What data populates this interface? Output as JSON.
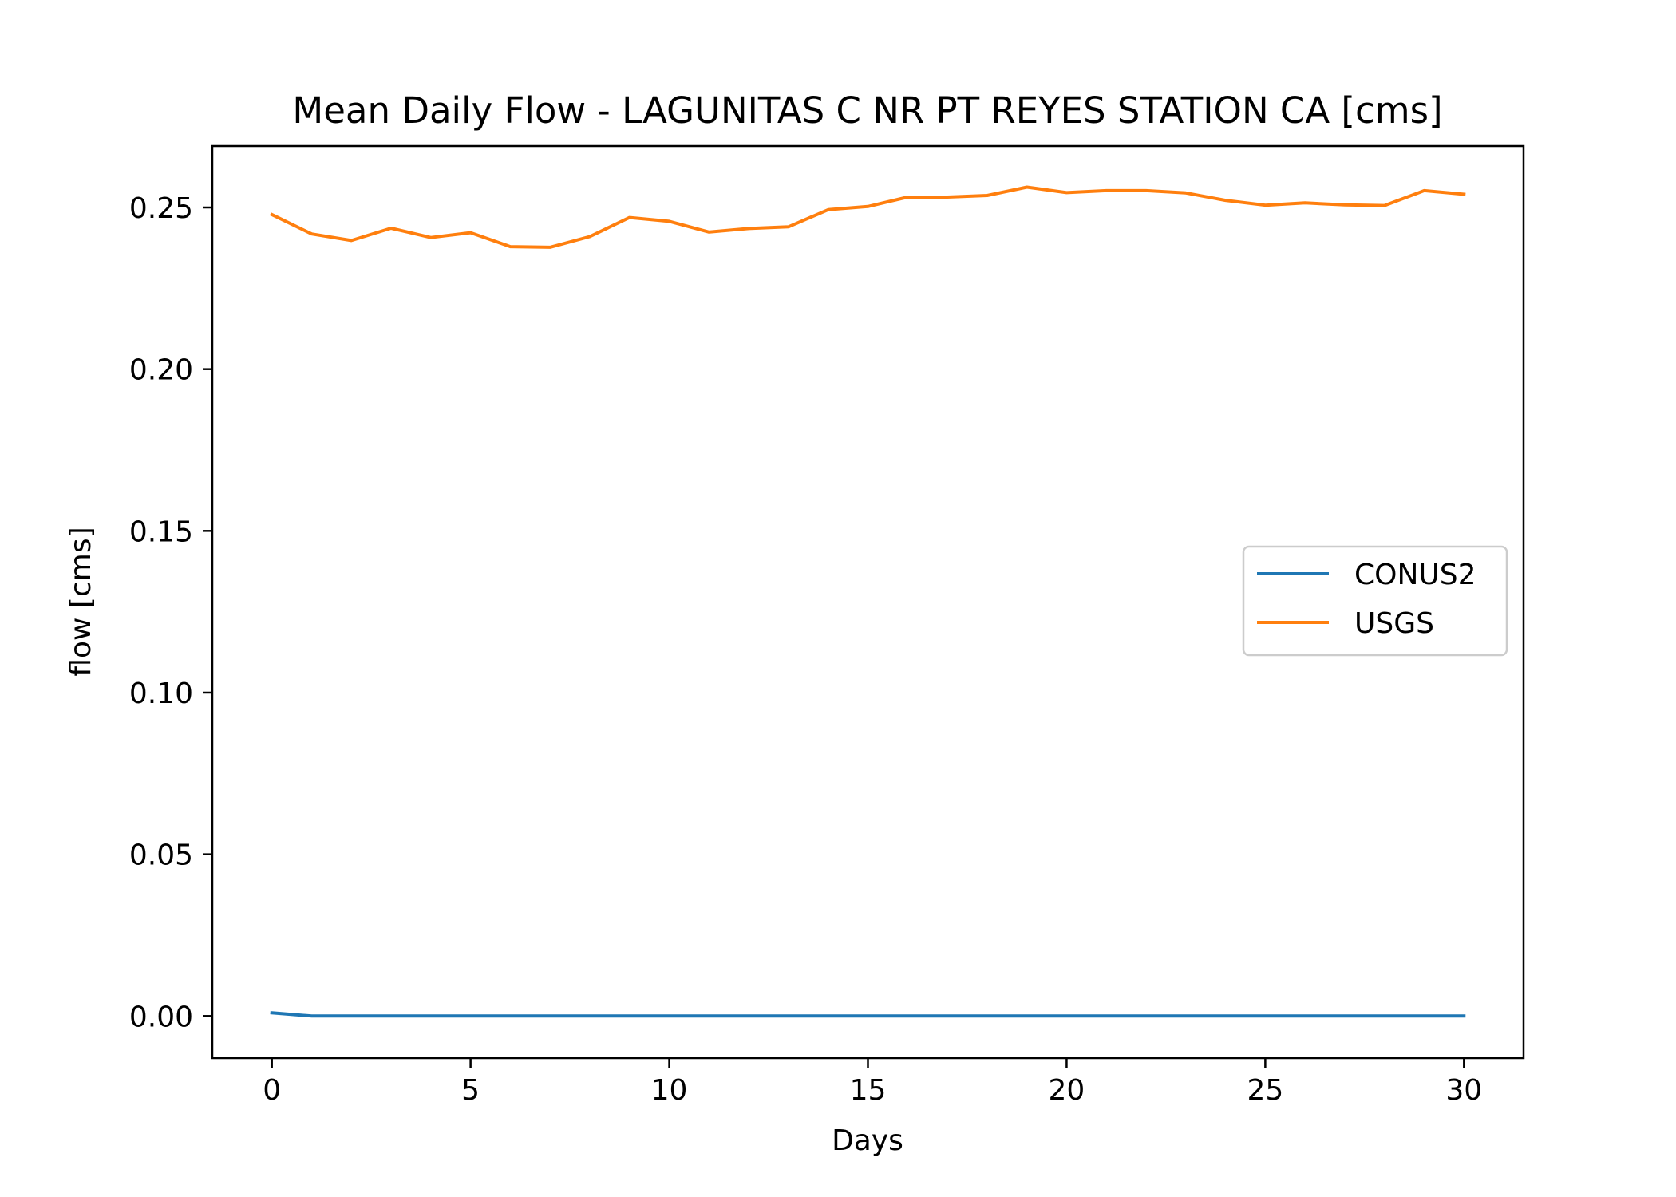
{
  "chart_data": {
    "type": "line",
    "title": "Mean Daily Flow - LAGUNITAS C NR PT REYES STATION CA [cms]",
    "xlabel": "Days",
    "ylabel": "flow [cms]",
    "xlim": [
      -1.5,
      31.5
    ],
    "ylim": [
      -0.013,
      0.269
    ],
    "xticks": [
      0,
      5,
      10,
      15,
      20,
      25,
      30
    ],
    "xtick_labels": [
      "0",
      "5",
      "10",
      "15",
      "20",
      "25",
      "30"
    ],
    "yticks": [
      0.0,
      0.05,
      0.1,
      0.15,
      0.2,
      0.25
    ],
    "ytick_labels": [
      "0.00",
      "0.05",
      "0.10",
      "0.15",
      "0.20",
      "0.25"
    ],
    "grid": false,
    "legend_position": "center-right",
    "x": [
      0,
      1,
      2,
      3,
      4,
      5,
      6,
      7,
      8,
      9,
      10,
      11,
      12,
      13,
      14,
      15,
      16,
      17,
      18,
      19,
      20,
      21,
      22,
      23,
      24,
      25,
      26,
      27,
      28,
      29,
      30
    ],
    "series": [
      {
        "name": "CONUS2",
        "color": "#1f77b4",
        "values": [
          0.001,
          0.0,
          0.0,
          0.0,
          0.0,
          0.0,
          0.0,
          0.0,
          0.0,
          0.0,
          0.0,
          0.0,
          0.0,
          0.0,
          0.0,
          0.0,
          0.0,
          0.0,
          0.0,
          0.0,
          0.0,
          0.0,
          0.0,
          0.0,
          0.0,
          0.0,
          0.0,
          0.0,
          0.0,
          0.0,
          0.0
        ]
      },
      {
        "name": "USGS",
        "color": "#ff7f0e",
        "values": [
          0.2478,
          0.2418,
          0.2398,
          0.2436,
          0.2407,
          0.2422,
          0.2379,
          0.2377,
          0.241,
          0.2469,
          0.2457,
          0.2424,
          0.2435,
          0.244,
          0.2493,
          0.2503,
          0.2532,
          0.2532,
          0.2537,
          0.2563,
          0.2546,
          0.2552,
          0.2552,
          0.2545,
          0.2522,
          0.2507,
          0.2514,
          0.2508,
          0.2506,
          0.2552,
          0.2541
        ]
      }
    ]
  }
}
